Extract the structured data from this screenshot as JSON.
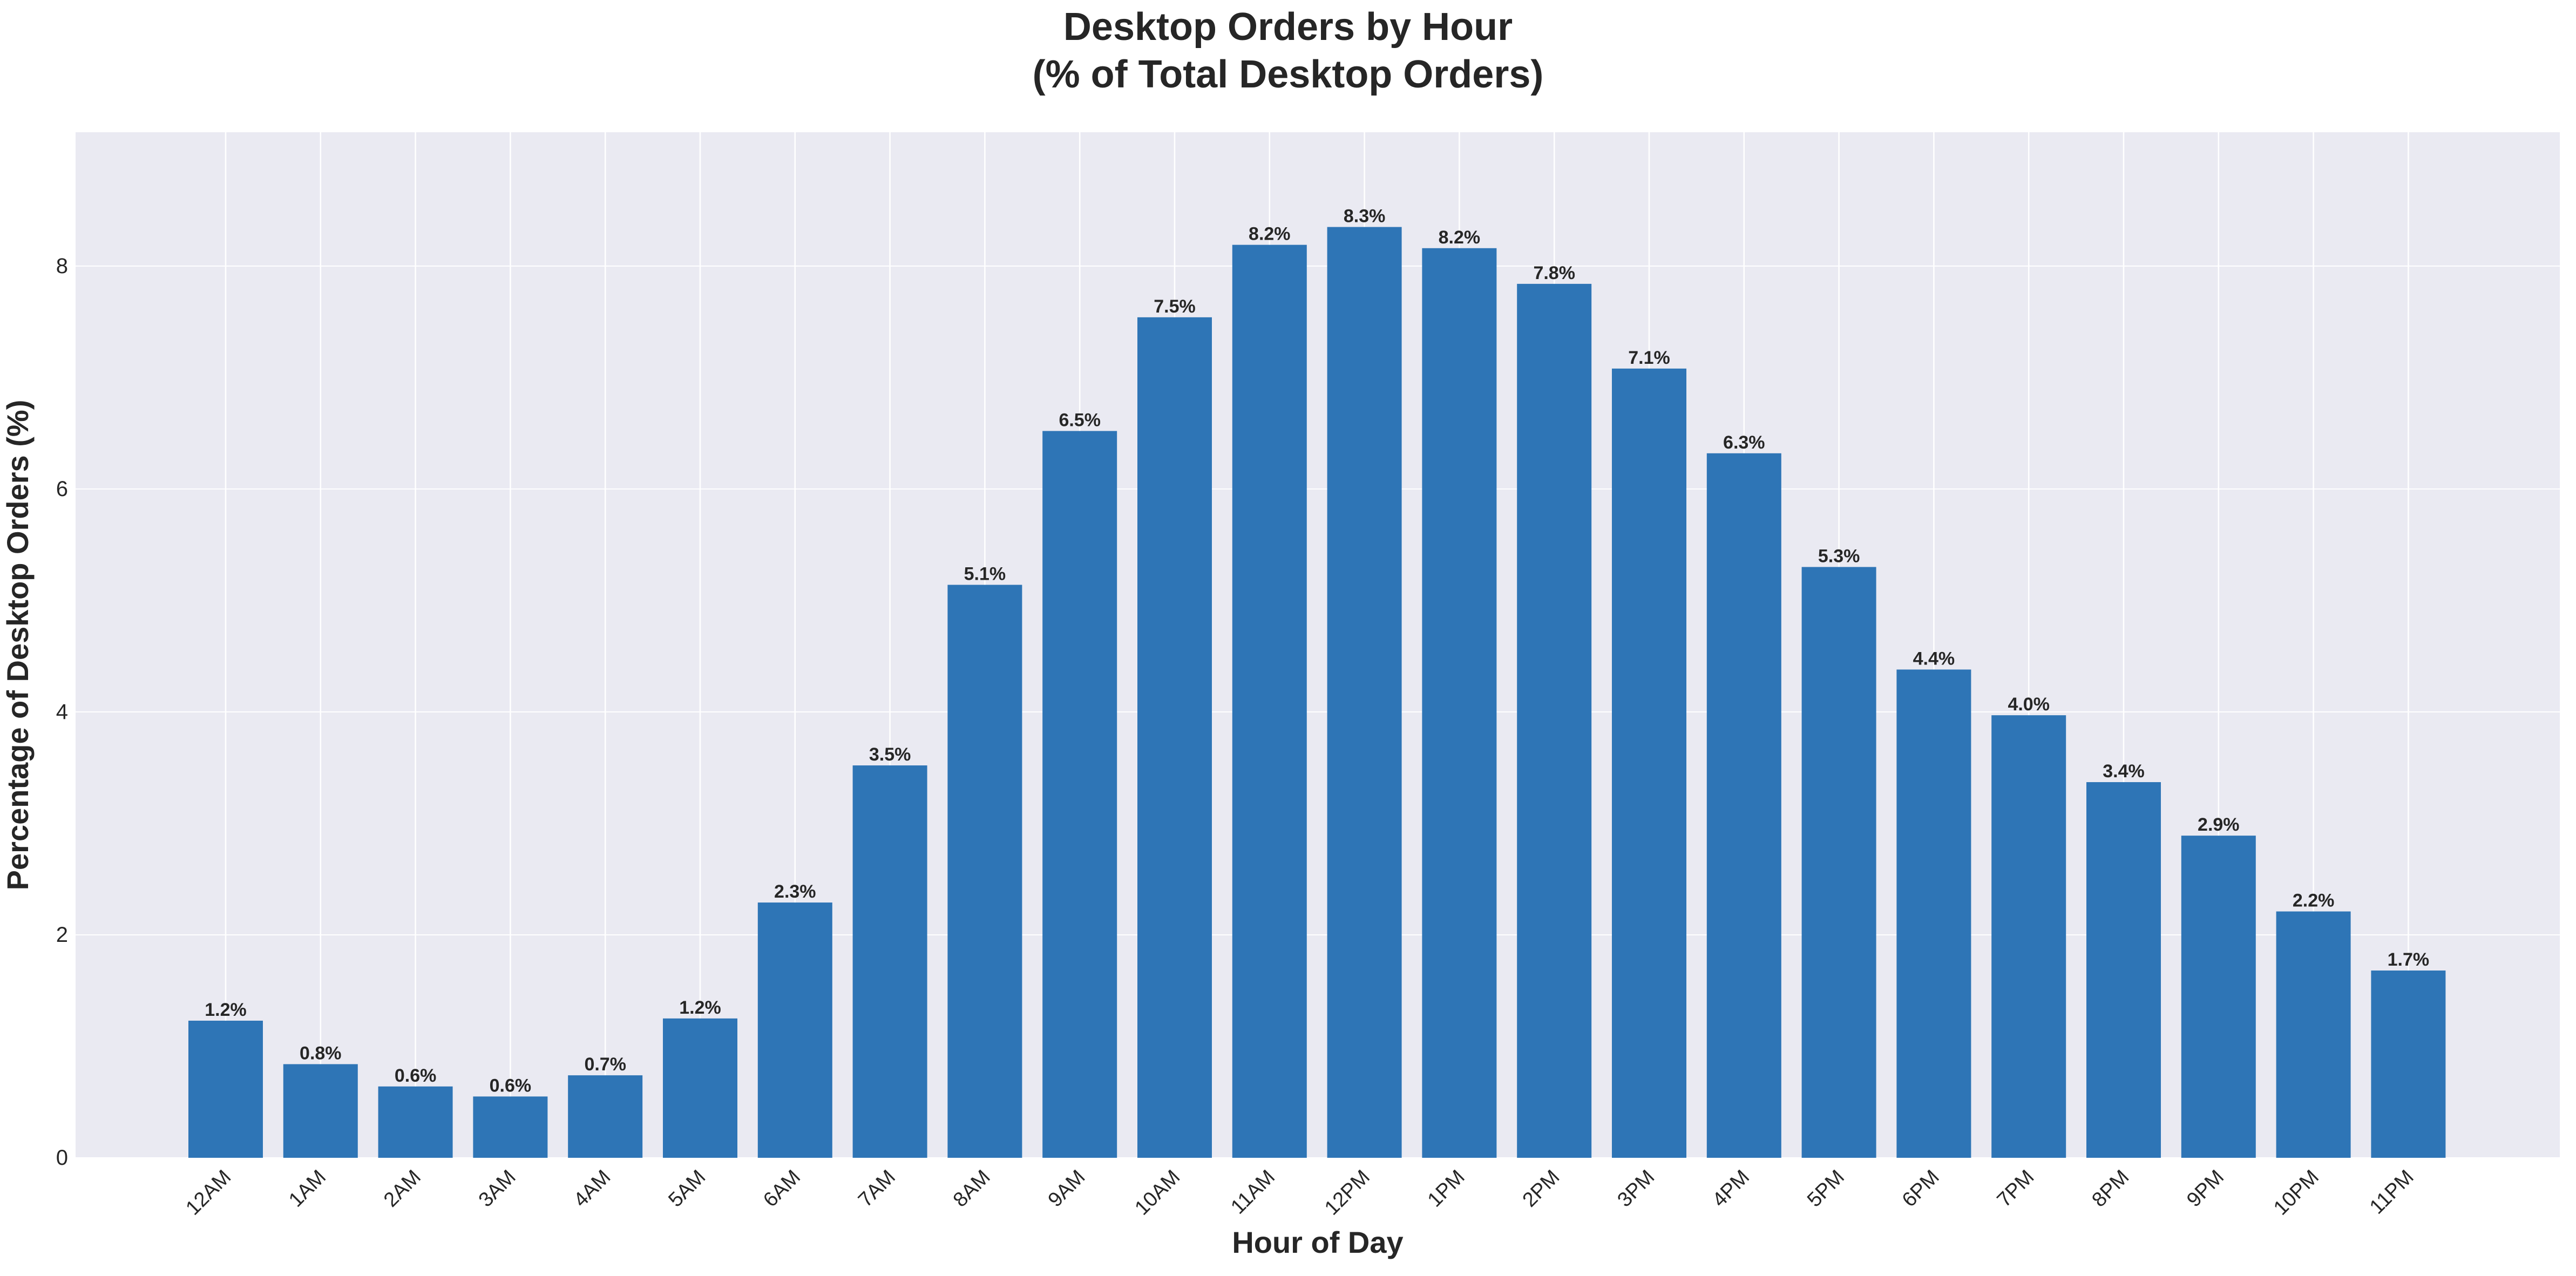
{
  "chart_data": {
    "type": "bar",
    "title_line1": "Desktop Orders by Hour",
    "title_line2": "(% of Total Desktop Orders)",
    "xlabel": "Hour of Day",
    "ylabel": "Percentage of Desktop Orders (%)",
    "categories": [
      "12AM",
      "1AM",
      "2AM",
      "3AM",
      "4AM",
      "5AM",
      "6AM",
      "7AM",
      "8AM",
      "9AM",
      "10AM",
      "11AM",
      "12PM",
      "1PM",
      "2PM",
      "3PM",
      "4PM",
      "5PM",
      "6PM",
      "7PM",
      "8PM",
      "9PM",
      "10PM",
      "11PM"
    ],
    "values": [
      1.23,
      0.84,
      0.64,
      0.55,
      0.74,
      1.25,
      2.29,
      3.52,
      5.14,
      6.52,
      7.54,
      8.19,
      8.35,
      8.16,
      7.84,
      7.08,
      6.32,
      5.3,
      4.38,
      3.97,
      3.37,
      2.89,
      2.21,
      1.68
    ],
    "data_labels": [
      "1.2%",
      "0.8%",
      "0.6%",
      "0.6%",
      "0.7%",
      "1.2%",
      "2.3%",
      "3.5%",
      "5.1%",
      "6.5%",
      "7.5%",
      "8.2%",
      "8.3%",
      "8.2%",
      "7.8%",
      "7.1%",
      "6.3%",
      "5.3%",
      "4.4%",
      "4.0%",
      "3.4%",
      "2.9%",
      "2.2%",
      "1.7%"
    ],
    "yticks": [
      0,
      2,
      4,
      6,
      8
    ],
    "ylim": [
      0,
      9.2
    ],
    "grid": true,
    "colors": {
      "bar": "#2e75b6",
      "plot_background": "#eaeaf2",
      "grid": "#ffffff",
      "text": "#262626"
    }
  }
}
